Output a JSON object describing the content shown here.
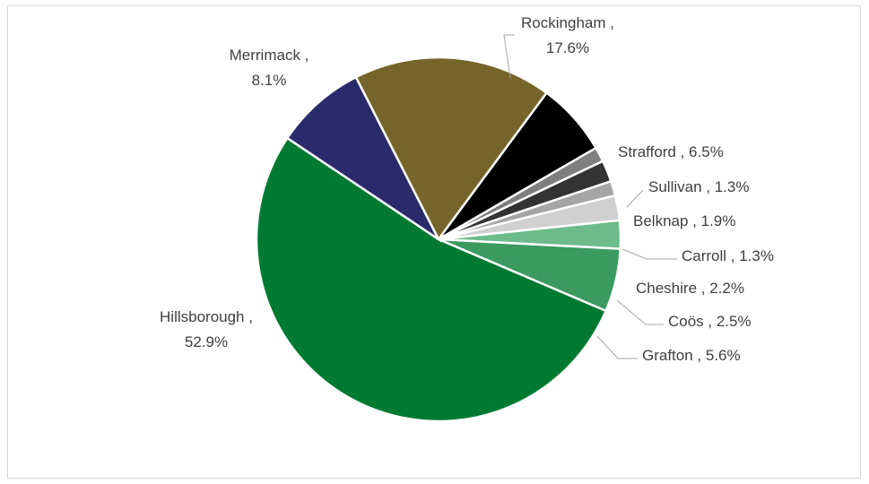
{
  "chart_data": {
    "type": "pie",
    "slices": [
      {
        "name": "Rockingham",
        "label": "Rockingham ,",
        "value_label": "17.6%",
        "value": 17.6,
        "color": "#76652b"
      },
      {
        "name": "Strafford",
        "label": "Strafford ,",
        "value_label": "6.5%",
        "value": 6.5,
        "color": "#000000"
      },
      {
        "name": "Sullivan",
        "label": "Sullivan ,",
        "value_label": "1.3%",
        "value": 1.3,
        "color": "#7f7f7f"
      },
      {
        "name": "Belknap",
        "label": "Belknap ,",
        "value_label": "1.9%",
        "value": 1.9,
        "color": "#333333"
      },
      {
        "name": "Carroll",
        "label": "Carroll ,",
        "value_label": "1.3%",
        "value": 1.3,
        "color": "#a5a5a5"
      },
      {
        "name": "Cheshire",
        "label": "Cheshire ,",
        "value_label": "2.2%",
        "value": 2.2,
        "color": "#d0d0d0"
      },
      {
        "name": "Coös",
        "label": "Coös ,",
        "value_label": "2.5%",
        "value": 2.5,
        "color": "#6dbb8b"
      },
      {
        "name": "Grafton",
        "label": "Grafton ,",
        "value_label": "5.6%",
        "value": 5.6,
        "color": "#3a9a5f"
      },
      {
        "name": "Hillsborough",
        "label": "Hillsborough ,",
        "value_label": "52.9%",
        "value": 52.9,
        "color": "#007a33"
      },
      {
        "name": "Merrimack",
        "label": "Merrimack ,",
        "value_label": "8.1%",
        "value": 8.1,
        "color": "#2b2a6b"
      }
    ]
  }
}
